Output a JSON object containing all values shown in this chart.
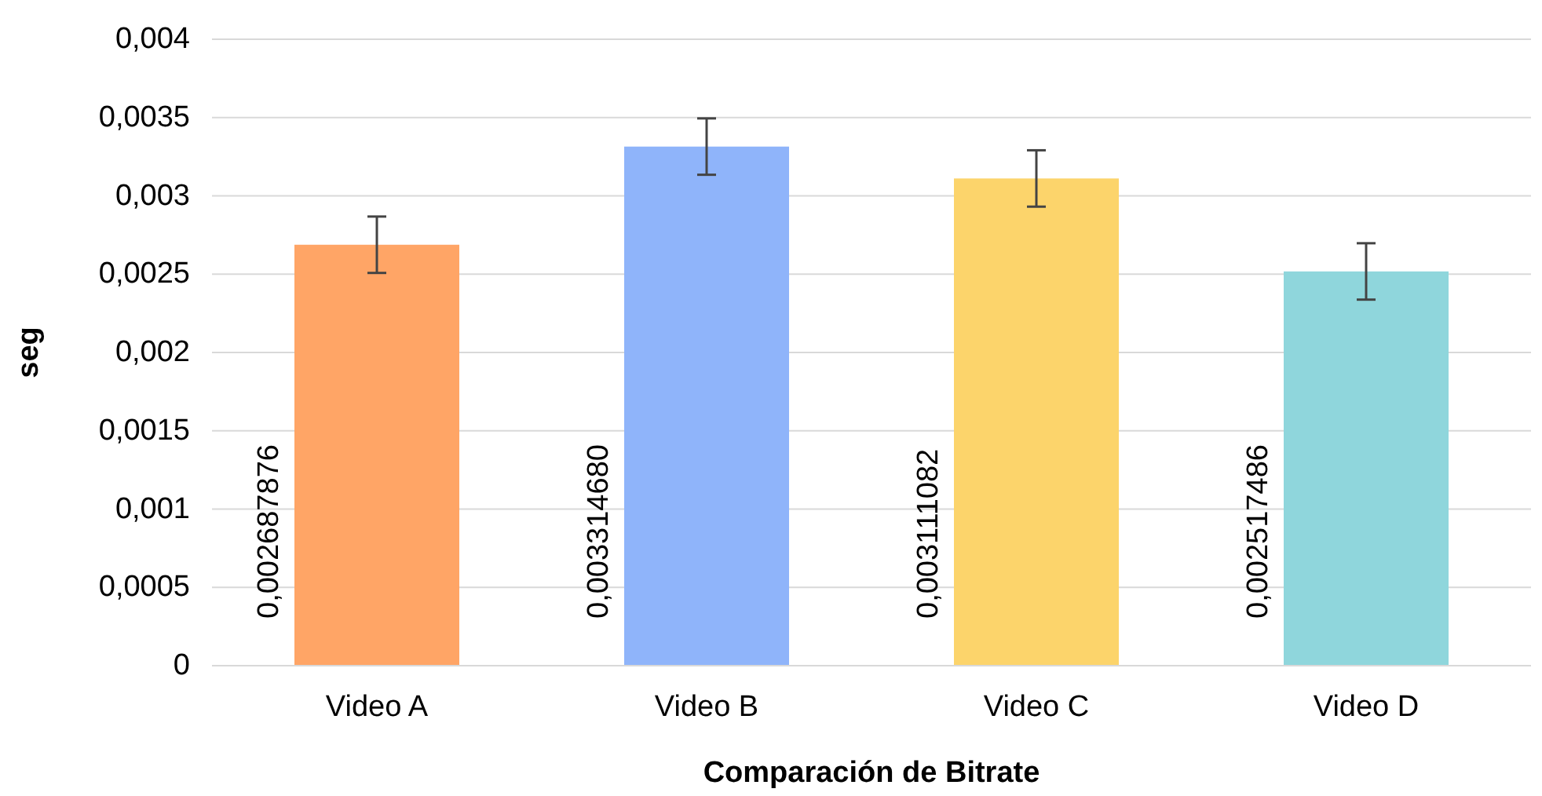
{
  "chart_data": {
    "type": "bar",
    "xlabel": "Comparación de Bitrate",
    "ylabel": "seg",
    "categories": [
      "Video A",
      "Video B",
      "Video C",
      "Video D"
    ],
    "values": [
      0.002687876,
      0.00331468,
      0.003111082,
      0.002517486
    ],
    "value_labels": [
      "0,002687876",
      "0,003314680",
      "0,003111082",
      "0,002517486"
    ],
    "colors": [
      "#ffa566",
      "#8fb4fa",
      "#fcd46b",
      "#8fd6dc"
    ],
    "errors": [
      0.00018,
      0.00018,
      0.00018,
      0.00018
    ],
    "ylim": [
      0,
      0.004
    ],
    "yticks": [
      0,
      {
        "value": 0.0005,
        "label": "0,0005"
      },
      {
        "value": 0.001,
        "label": "0,001"
      },
      {
        "value": 0.0015,
        "label": "0,0015"
      },
      {
        "value": 0.002,
        "label": "0,002"
      },
      {
        "value": 0.0025,
        "label": "0,0025"
      },
      {
        "value": 0.003,
        "label": "0,003"
      },
      {
        "value": 0.0035,
        "label": "0,0035"
      },
      {
        "value": 0.004,
        "label": "0,004"
      }
    ],
    "grid": "y"
  }
}
